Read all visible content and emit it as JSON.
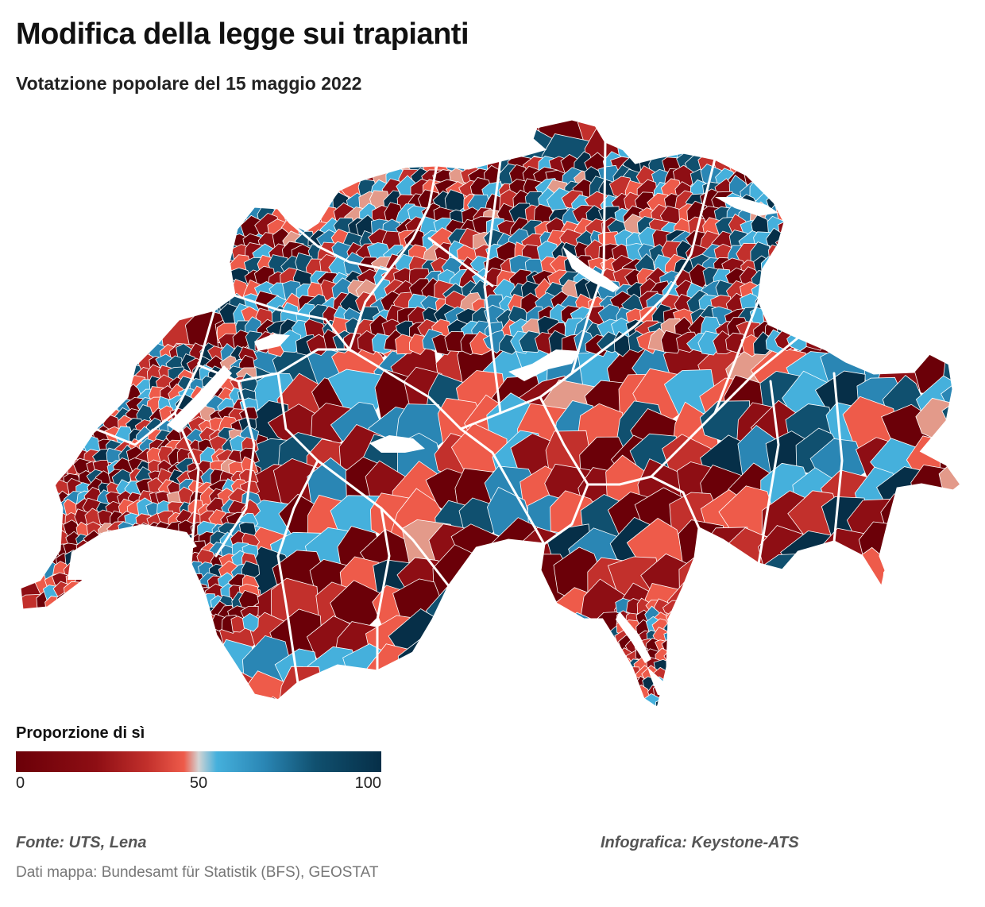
{
  "header": {
    "title": "Modifica della legge sui trapianti",
    "subtitle": "Votatzione popolare del 15 maggio 2022"
  },
  "legend": {
    "title": "Proporzione di sì",
    "min_label": "0",
    "mid_label": "50",
    "max_label": "100",
    "scale": {
      "min": 0,
      "mid": 50,
      "max": 100
    },
    "colors": [
      "#6b0008",
      "#8e0e14",
      "#c2302c",
      "#ee5b4a",
      "#d3d3d3",
      "#45b0dc",
      "#2a86b4",
      "#10506f",
      "#062f48"
    ]
  },
  "map": {
    "region": "switzerland-municipalities",
    "border_color": "#ffffff",
    "lake_color": "#ffffff"
  },
  "footer": {
    "source": "Fonte: UTS, Lena",
    "credit": "Infografica: Keystone-ATS",
    "map_data": "Dati mappa: Bundesamt für Statistik (BFS), GEOSTAT"
  }
}
